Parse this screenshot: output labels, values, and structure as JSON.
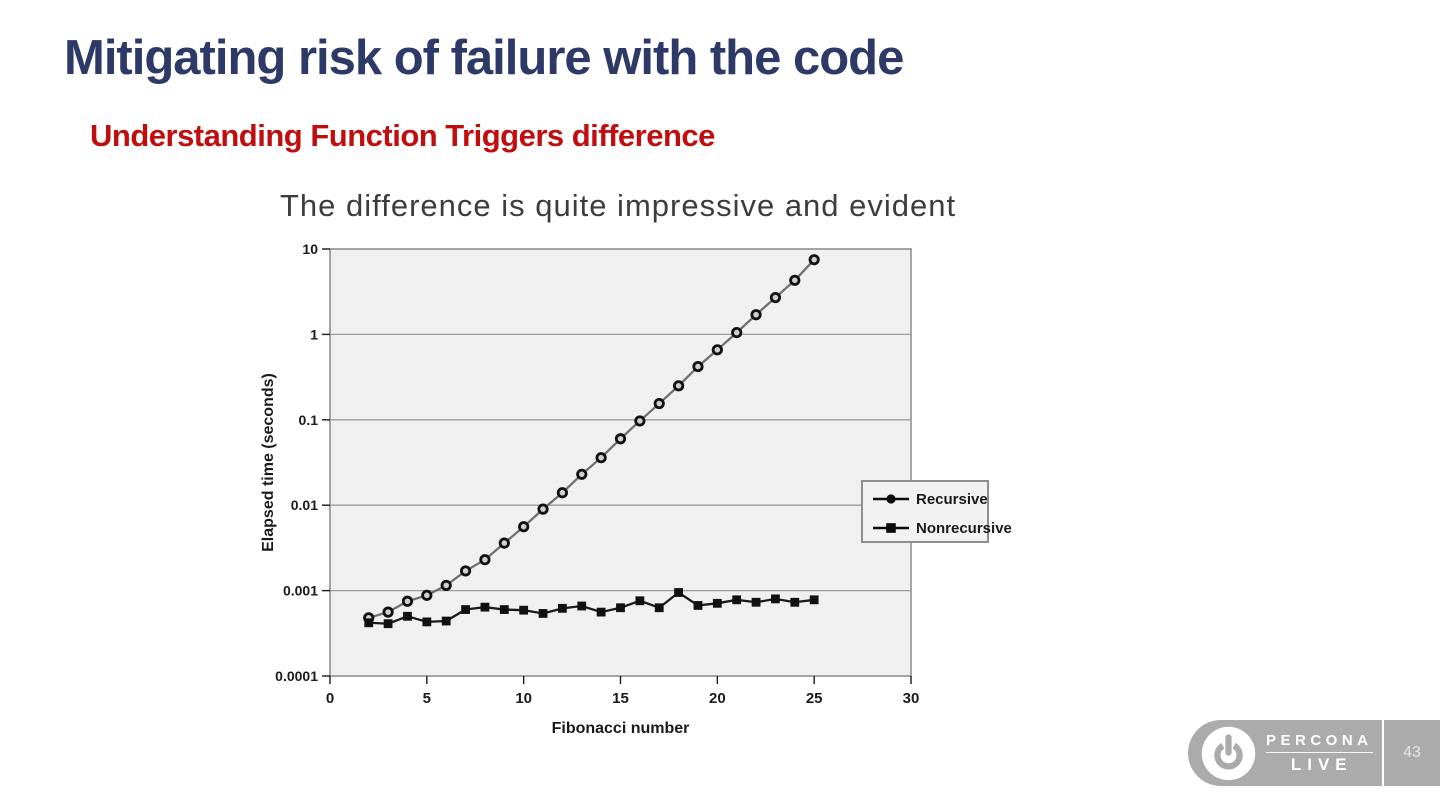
{
  "slide": {
    "title": "Mitigating risk of failure with the code",
    "subtitle": "Understanding Function Triggers difference",
    "body_text": "The difference is quite impressive and evident",
    "colors": {
      "title": "#2d3a67",
      "subtitle": "#c00d0d",
      "body": "#3d3d3d",
      "footer_bar": "#ababab",
      "footer_text": "#ffffff",
      "page_number": "#e5e5e5"
    },
    "footer": {
      "icon": "power-icon",
      "brand_top": "PERCONA",
      "brand_bottom": "LIVE",
      "page_number": "43"
    }
  },
  "chart_data": {
    "type": "line",
    "title": "",
    "xlabel": "Fibonacci number",
    "ylabel": "Elapsed time (seconds)",
    "xlim": [
      0,
      30
    ],
    "x_ticks": [
      0,
      5,
      10,
      15,
      20,
      25,
      30
    ],
    "y_scale": "log",
    "ylim": [
      0.0001,
      10
    ],
    "y_tick_values": [
      10,
      1,
      0.1,
      0.01,
      0.001,
      0.0001
    ],
    "y_tick_labels": [
      "10",
      "1",
      "0.1",
      "0.01",
      "0.001",
      "0.0001"
    ],
    "grid": "horizontal",
    "legend_position": "right-inside",
    "x": [
      2,
      3,
      4,
      5,
      6,
      7,
      8,
      9,
      10,
      11,
      12,
      13,
      14,
      15,
      16,
      17,
      18,
      19,
      20,
      21,
      22,
      23,
      24,
      25
    ],
    "series": [
      {
        "name": "Recursive",
        "marker": "circle",
        "line_color": "#6f6f6f",
        "marker_color": "#111111",
        "values": [
          0.00048,
          0.00056,
          0.00075,
          0.00088,
          0.00115,
          0.0017,
          0.0023,
          0.0036,
          0.0056,
          0.009,
          0.014,
          0.023,
          0.036,
          0.06,
          0.097,
          0.155,
          0.25,
          0.42,
          0.66,
          1.05,
          1.7,
          2.7,
          4.3,
          7.5
        ]
      },
      {
        "name": "Nonrecursive",
        "marker": "square",
        "line_color": "#1a1a1a",
        "marker_color": "#111111",
        "values": [
          0.00042,
          0.00041,
          0.0005,
          0.00043,
          0.00044,
          0.0006,
          0.00064,
          0.0006,
          0.00059,
          0.00054,
          0.00062,
          0.00066,
          0.00056,
          0.00063,
          0.00076,
          0.00063,
          0.00095,
          0.00067,
          0.00071,
          0.00078,
          0.00073,
          0.0008,
          0.00073,
          0.00078
        ]
      }
    ],
    "colors": {
      "plot_bg": "#f0f0f0",
      "grid": "#9c9c9c",
      "border": "#8f8f8f",
      "tick_text": "#1a1a1a",
      "legend_bg": "#f2f2f2"
    }
  }
}
